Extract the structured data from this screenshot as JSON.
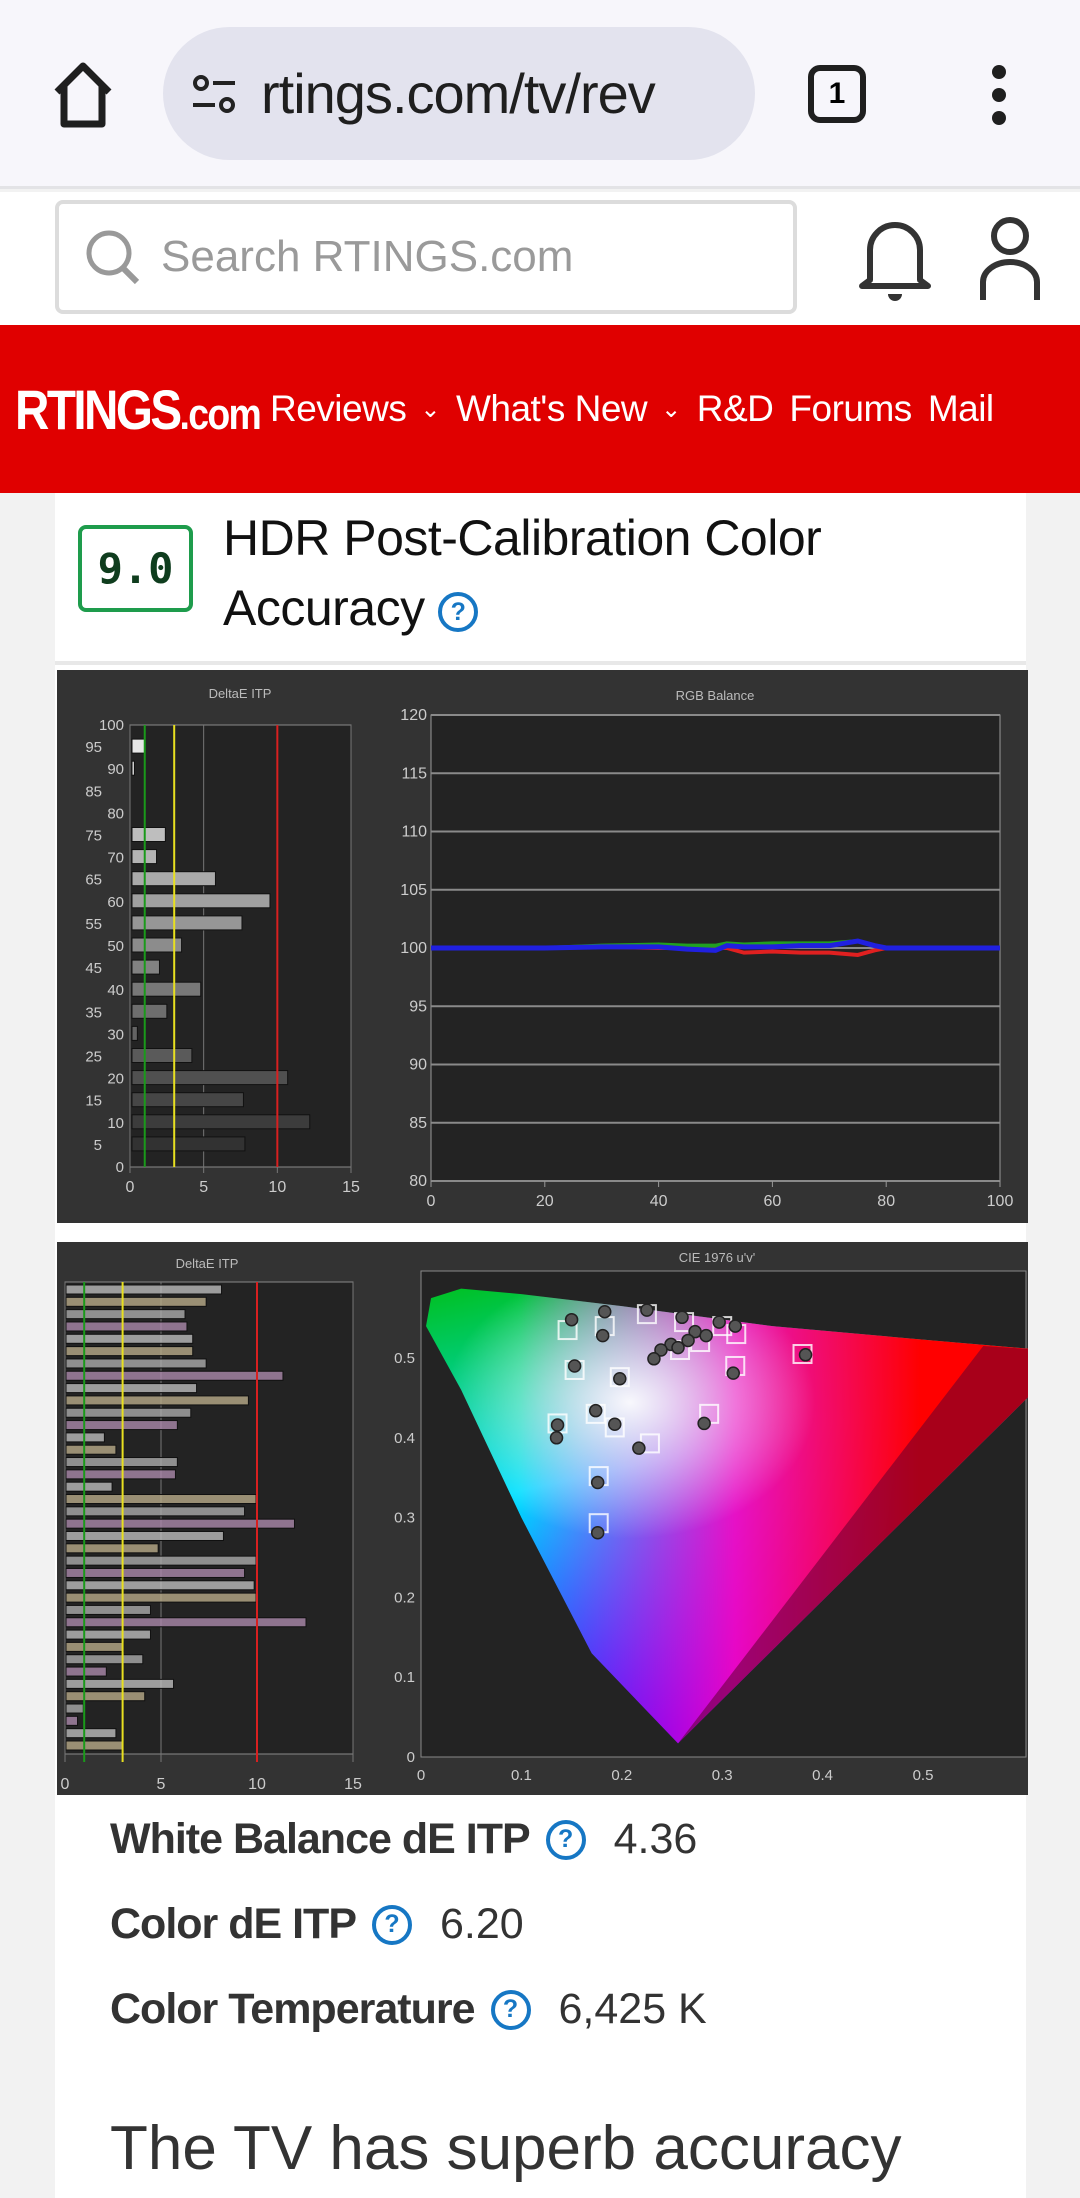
{
  "browser": {
    "url": "rtings.com/tv/rev",
    "tab_count": "1",
    "icons": [
      "home-icon",
      "site-settings-icon",
      "tabs-icon",
      "more-vert-icon"
    ]
  },
  "site": {
    "search_placeholder": "Search RTINGS.com",
    "logo_main": "RTINGS",
    "logo_suffix": ".com",
    "nav": [
      {
        "label": "Reviews",
        "dropdown": true
      },
      {
        "label": "What's New",
        "dropdown": true
      },
      {
        "label": "R&D"
      },
      {
        "label": "Forums"
      },
      {
        "label": "Mail"
      }
    ],
    "brand_color": "#e00000"
  },
  "section": {
    "score": "9.0",
    "title": "HDR Post-Calibration Color Accuracy",
    "score_color": "#1e9c4c",
    "help_color": "#1677c4"
  },
  "stats": [
    {
      "label": "White Balance dE ITP",
      "value": "4.36"
    },
    {
      "label": "Color dE ITP",
      "value": "6.20"
    },
    {
      "label": "Color Temperature",
      "value": "6,425 K"
    }
  ],
  "lead_text": "The TV has superb accuracy",
  "chart_data": [
    {
      "type": "bar",
      "title": "DeltaE ITP",
      "orientation": "horizontal",
      "categories": [
        0,
        5,
        10,
        15,
        20,
        25,
        30,
        35,
        40,
        45,
        50,
        55,
        60,
        65,
        70,
        75,
        80,
        85,
        90,
        95,
        100
      ],
      "values": [
        0,
        7.8,
        12.2,
        7.7,
        10.7,
        4.2,
        0.5,
        2.5,
        4.8,
        2.0,
        3.5,
        7.6,
        9.5,
        5.8,
        1.8,
        2.4,
        0,
        0.1,
        0.3,
        1.0,
        0
      ],
      "xlim": [
        0,
        15
      ],
      "xticks": [
        "0",
        "5",
        "10",
        "15"
      ],
      "yticks": [
        "0",
        "5",
        "10",
        "15",
        "20",
        "25",
        "30",
        "35",
        "40",
        "45",
        "50",
        "55",
        "60",
        "65",
        "70",
        "75",
        "80",
        "85",
        "90",
        "95",
        "100"
      ],
      "thresholds": [
        {
          "x": 1,
          "color": "#1a9a1a"
        },
        {
          "x": 3,
          "color": "#e8e020"
        },
        {
          "x": 10,
          "color": "#d82020"
        }
      ]
    },
    {
      "type": "line",
      "title": "RGB Balance",
      "xlim": [
        0,
        100
      ],
      "ylim": [
        80,
        120
      ],
      "xticks": [
        "0",
        "20",
        "40",
        "60",
        "80",
        "100"
      ],
      "yticks": [
        "80",
        "85",
        "90",
        "95",
        "100",
        "105",
        "110",
        "115",
        "120"
      ],
      "x": [
        0,
        10,
        20,
        30,
        40,
        45,
        50,
        52,
        55,
        60,
        65,
        70,
        75,
        78,
        80,
        90,
        100
      ],
      "series": [
        {
          "color": "#e02020",
          "values": [
            100,
            100,
            100,
            100.1,
            100,
            100,
            100,
            100,
            99.6,
            99.7,
            99.6,
            99.6,
            99.4,
            99.8,
            100,
            100,
            100
          ]
        },
        {
          "color": "#20a020",
          "values": [
            100,
            100,
            100,
            100.2,
            100.3,
            100.2,
            100.2,
            100.4,
            100.3,
            100.4,
            100.4,
            100.4,
            100.6,
            100.2,
            100,
            100,
            100
          ]
        },
        {
          "color": "#2020e0",
          "values": [
            100,
            100,
            100,
            100.1,
            100.1,
            99.9,
            99.8,
            100.2,
            100.1,
            100.1,
            100.2,
            100.2,
            100.6,
            100.2,
            100,
            100,
            100
          ]
        }
      ]
    },
    {
      "type": "bar",
      "title": "DeltaE ITP",
      "orientation": "horizontal",
      "values": [
        8.1,
        7.3,
        6.2,
        6.3,
        6.6,
        6.6,
        7.3,
        11.3,
        6.8,
        9.5,
        6.5,
        5.8,
        2.0,
        2.6,
        5.8,
        5.7,
        2.4,
        9.9,
        9.3,
        11.9,
        8.2,
        4.8,
        9.9,
        9.3,
        9.8,
        9.9,
        4.4,
        12.5,
        4.4,
        3.0,
        4.0,
        2.1,
        5.6,
        4.1,
        0.9,
        0.6,
        2.6,
        3.0
      ],
      "xlim": [
        0,
        15
      ],
      "xticks": [
        "0",
        "5",
        "10",
        "15"
      ],
      "thresholds": [
        {
          "x": 1,
          "color": "#1a9a1a"
        },
        {
          "x": 3,
          "color": "#e8e020"
        },
        {
          "x": 10,
          "color": "#d82020"
        }
      ]
    },
    {
      "type": "scatter",
      "title": "CIE 1976 u'v'",
      "xlim": [
        0,
        0.6
      ],
      "ylim": [
        0,
        0.58
      ],
      "xticks": [
        "0",
        "0.1",
        "0.2",
        "0.3",
        "0.4",
        "0.5"
      ],
      "yticks": [
        "0",
        "0.1",
        "0.2",
        "0.3",
        "0.4",
        "0.5"
      ],
      "measured": [
        [
          0.15,
          0.548
        ],
        [
          0.183,
          0.558
        ],
        [
          0.181,
          0.528
        ],
        [
          0.225,
          0.56
        ],
        [
          0.26,
          0.551
        ],
        [
          0.297,
          0.545
        ],
        [
          0.313,
          0.54
        ],
        [
          0.273,
          0.533
        ],
        [
          0.284,
          0.528
        ],
        [
          0.266,
          0.522
        ],
        [
          0.249,
          0.517
        ],
        [
          0.239,
          0.51
        ],
        [
          0.232,
          0.499
        ],
        [
          0.256,
          0.513
        ],
        [
          0.383,
          0.504
        ],
        [
          0.153,
          0.49
        ],
        [
          0.198,
          0.474
        ],
        [
          0.311,
          0.481
        ],
        [
          0.174,
          0.434
        ],
        [
          0.193,
          0.417
        ],
        [
          0.136,
          0.416
        ],
        [
          0.135,
          0.4
        ],
        [
          0.282,
          0.418
        ],
        [
          0.217,
          0.387
        ],
        [
          0.176,
          0.344
        ],
        [
          0.176,
          0.281
        ]
      ],
      "targets": [
        [
          0.146,
          0.535
        ],
        [
          0.183,
          0.54
        ],
        [
          0.225,
          0.555
        ],
        [
          0.262,
          0.545
        ],
        [
          0.3,
          0.54
        ],
        [
          0.314,
          0.53
        ],
        [
          0.278,
          0.52
        ],
        [
          0.258,
          0.51
        ],
        [
          0.38,
          0.505
        ],
        [
          0.153,
          0.485
        ],
        [
          0.198,
          0.476
        ],
        [
          0.313,
          0.49
        ],
        [
          0.174,
          0.43
        ],
        [
          0.193,
          0.413
        ],
        [
          0.136,
          0.418
        ],
        [
          0.287,
          0.43
        ],
        [
          0.228,
          0.393
        ],
        [
          0.177,
          0.352
        ],
        [
          0.177,
          0.293
        ]
      ]
    }
  ]
}
